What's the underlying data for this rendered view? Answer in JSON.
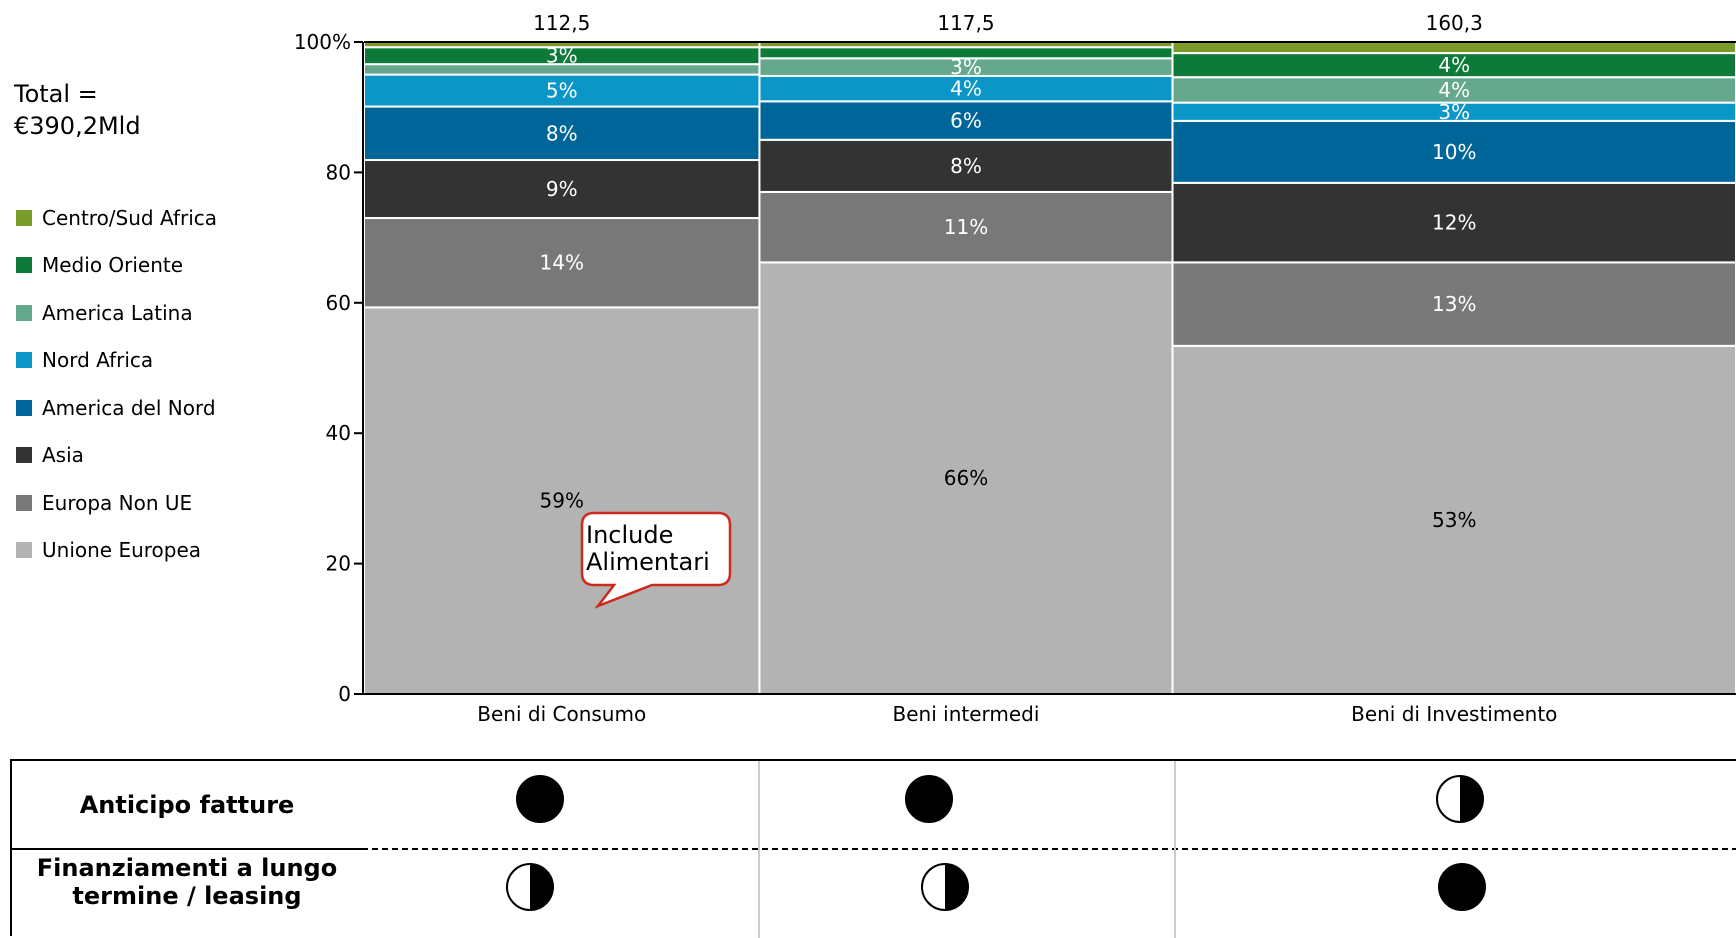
{
  "total": {
    "line1": "Total =",
    "line2": "€390,2Mld"
  },
  "legend": [
    {
      "label": "Centro/Sud Africa",
      "color": "#7a9a2a"
    },
    {
      "label": "Medio Oriente",
      "color": "#0d7a3a"
    },
    {
      "label": "America Latina",
      "color": "#66a88e"
    },
    {
      "label": "Nord Africa",
      "color": "#0a96c6"
    },
    {
      "label": "America del Nord",
      "color": "#006699"
    },
    {
      "label": "Asia",
      "color": "#333333"
    },
    {
      "label": "Europa Non UE",
      "color": "#787878"
    },
    {
      "label": "Unione Europea",
      "color": "#b3b3b3"
    }
  ],
  "chart_data": {
    "type": "bar",
    "subtype": "marimekko",
    "ylim": [
      0,
      100
    ],
    "yticks": [
      0,
      20,
      40,
      60,
      80,
      100
    ],
    "ytick_labels": [
      "0",
      "20",
      "40",
      "60",
      "80",
      "100%"
    ],
    "categories": [
      "Beni di Consumo",
      "Beni intermedi",
      "Beni di Investimento"
    ],
    "totals": [
      112.5,
      117.5,
      160.3
    ],
    "total_labels": [
      "112,5",
      "117,5",
      "160,3"
    ],
    "series": [
      {
        "name": "Unione Europea",
        "color": "#b3b3b3",
        "values": [
          59.3,
          66.2,
          53.4
        ],
        "labels": [
          "59%",
          "66%",
          "53%"
        ],
        "label_color": "#000000"
      },
      {
        "name": "Europa Non UE",
        "color": "#787878",
        "values": [
          13.7,
          10.8,
          12.8
        ],
        "labels": [
          "14%",
          "11%",
          "13%"
        ],
        "label_color": "#ffffff"
      },
      {
        "name": "Asia",
        "color": "#333333",
        "values": [
          8.9,
          8.0,
          12.2
        ],
        "labels": [
          "9%",
          "8%",
          "12%"
        ],
        "label_color": "#ffffff"
      },
      {
        "name": "America del Nord",
        "color": "#006699",
        "values": [
          8.2,
          5.9,
          9.5
        ],
        "labels": [
          "8%",
          "6%",
          "10%"
        ],
        "label_color": "#ffffff"
      },
      {
        "name": "Nord Africa",
        "color": "#0a96c6",
        "values": [
          4.9,
          3.9,
          2.8
        ],
        "labels": [
          "5%",
          "4%",
          "3%"
        ],
        "label_color": "#ffffff"
      },
      {
        "name": "America Latina",
        "color": "#66a88e",
        "values": [
          1.6,
          2.7,
          3.9
        ],
        "labels": [
          "",
          "3%",
          "4%"
        ],
        "label_color": "#ffffff"
      },
      {
        "name": "Medio Oriente",
        "color": "#0d7a3a",
        "values": [
          2.6,
          1.7,
          3.7
        ],
        "labels": [
          "3%",
          "",
          "4%"
        ],
        "label_color": "#ffffff"
      },
      {
        "name": "Centro/Sud Africa",
        "color": "#7a9a2a",
        "values": [
          0.8,
          0.8,
          1.7
        ],
        "labels": [
          "",
          "",
          ""
        ],
        "label_color": "#ffffff"
      }
    ],
    "annotation": {
      "text_line1": "Include",
      "text_line2": "Alimentari",
      "category": "Beni di Consumo"
    }
  },
  "table": {
    "rows": [
      {
        "label_lines": [
          "Anticipo fatture"
        ],
        "values": [
          "full",
          "full",
          "half"
        ]
      },
      {
        "label_lines": [
          "Finanziamenti a lungo",
          "termine / leasing"
        ],
        "values": [
          "half",
          "half",
          "full"
        ]
      }
    ]
  }
}
